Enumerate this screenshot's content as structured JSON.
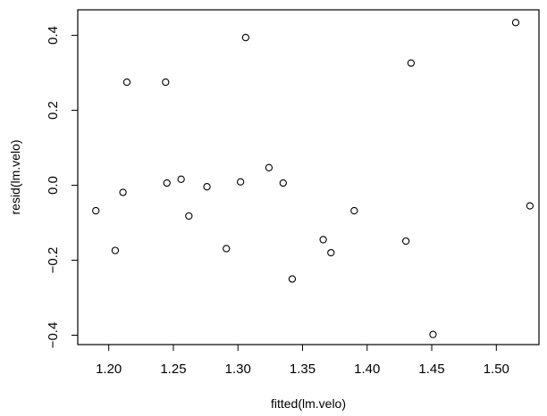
{
  "chart_data": {
    "type": "scatter",
    "title": "",
    "xlabel": "fitted(lm.velo)",
    "ylabel": "resid(lm.velo)",
    "xlim": [
      1.176,
      1.533
    ],
    "ylim": [
      -0.425,
      0.468
    ],
    "xticks": [
      1.2,
      1.25,
      1.3,
      1.35,
      1.4,
      1.45,
      1.5
    ],
    "xtick_labels": [
      "1.20",
      "1.25",
      "1.30",
      "1.35",
      "1.40",
      "1.45",
      "1.50"
    ],
    "yticks": [
      -0.4,
      -0.2,
      0.0,
      0.2,
      0.4
    ],
    "ytick_labels": [
      "−0.4",
      "−0.2",
      "0.0",
      "0.2",
      "0.4"
    ],
    "grid": false,
    "marker": "open-circle",
    "points": [
      {
        "x": 1.19,
        "y": -0.068
      },
      {
        "x": 1.205,
        "y": -0.174
      },
      {
        "x": 1.211,
        "y": -0.019
      },
      {
        "x": 1.214,
        "y": 0.275
      },
      {
        "x": 1.244,
        "y": 0.275
      },
      {
        "x": 1.245,
        "y": 0.006
      },
      {
        "x": 1.256,
        "y": 0.016
      },
      {
        "x": 1.262,
        "y": -0.082
      },
      {
        "x": 1.276,
        "y": -0.004
      },
      {
        "x": 1.291,
        "y": -0.169
      },
      {
        "x": 1.302,
        "y": 0.009
      },
      {
        "x": 1.306,
        "y": 0.394
      },
      {
        "x": 1.324,
        "y": 0.047
      },
      {
        "x": 1.335,
        "y": 0.006
      },
      {
        "x": 1.342,
        "y": -0.25
      },
      {
        "x": 1.366,
        "y": -0.145
      },
      {
        "x": 1.372,
        "y": -0.18
      },
      {
        "x": 1.39,
        "y": -0.068
      },
      {
        "x": 1.43,
        "y": -0.149
      },
      {
        "x": 1.434,
        "y": 0.326
      },
      {
        "x": 1.451,
        "y": -0.398
      },
      {
        "x": 1.515,
        "y": 0.434
      },
      {
        "x": 1.526,
        "y": -0.055
      }
    ]
  }
}
